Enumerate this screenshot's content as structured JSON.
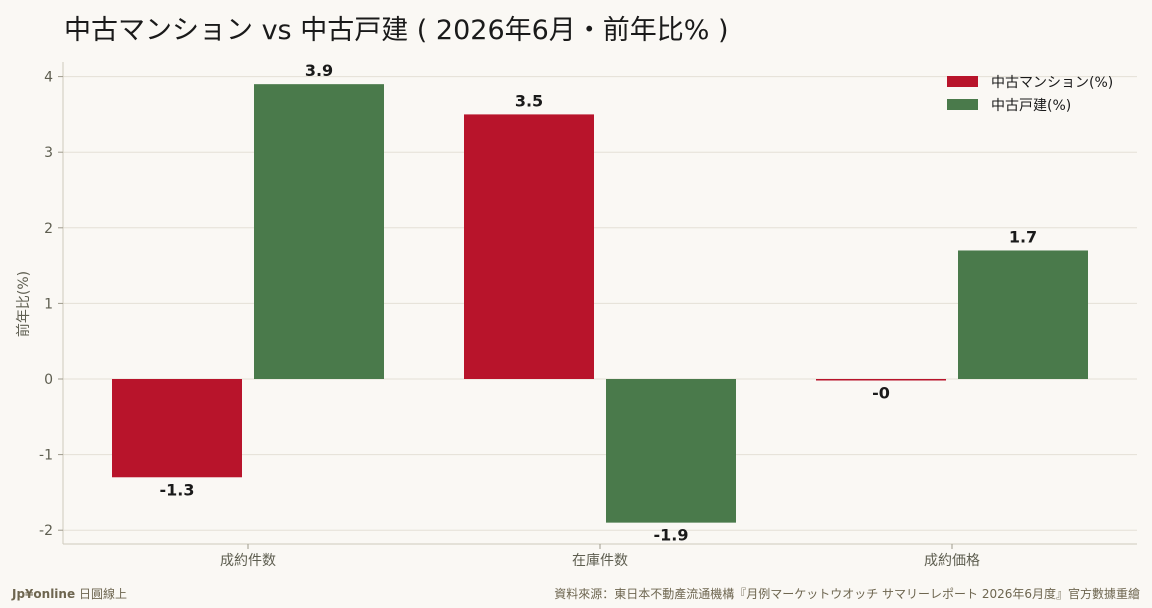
{
  "chart_data": {
    "type": "bar",
    "title": "中古マンション vs 中古戸建 ( 2026年6月・前年比% )",
    "ylabel": "前年比(%)",
    "xlabel": "",
    "categories": [
      "成約件数",
      "在庫件数",
      "成約価格"
    ],
    "series": [
      {
        "name": "中古マンション(%)",
        "values": [
          -1.3,
          3.5,
          -0.02
        ],
        "labels": [
          "-1.3",
          "3.5",
          "-0"
        ],
        "color": "#b8142b"
      },
      {
        "name": "中古戸建(%)",
        "values": [
          3.9,
          -1.9,
          1.7
        ],
        "labels": [
          "3.9",
          "-1.9",
          "1.7"
        ],
        "color": "#4a7a4b"
      }
    ],
    "yticks": [
      4,
      3,
      2,
      1,
      0,
      -1,
      -2
    ],
    "ylim": [
      -2.2,
      4.2
    ],
    "grid": true,
    "legend": "top-right"
  },
  "footer": {
    "brand": "Jp¥online",
    "brand_suffix": "日圓線上",
    "source": "資料來源：東日本不動產流通機構『月例マーケットウオッチ サマリーレポート 2026年6月度』官方數據重繪"
  }
}
